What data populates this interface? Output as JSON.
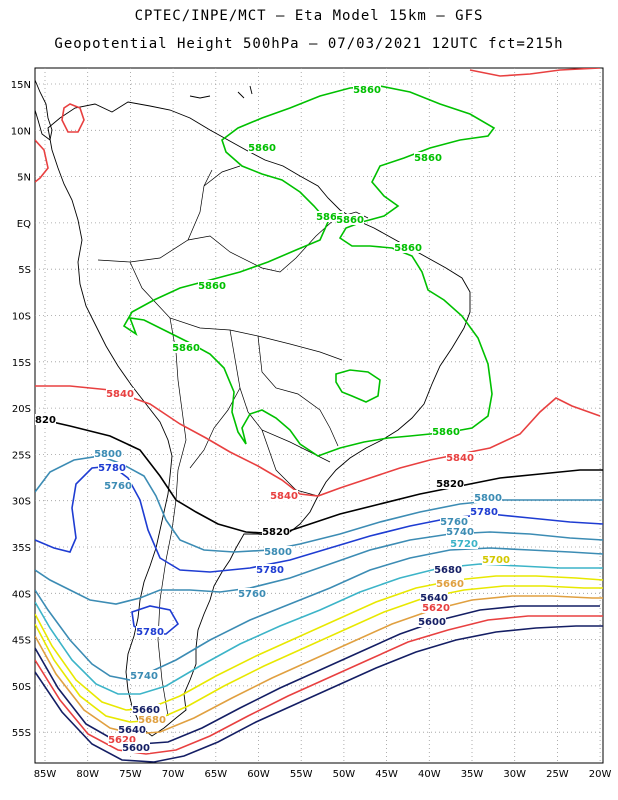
{
  "header": {
    "line1": "CPTEC/INPE/MCT –  Eta Model 15km – GFS",
    "line2": "Geopotential Height 500hPa – 07/03/2021 12UTC fct=215h"
  },
  "axes": {
    "lat_labels": [
      "15N",
      "10N",
      "5N",
      "EQ",
      "5S",
      "10S",
      "15S",
      "20S",
      "25S",
      "30S",
      "35S",
      "40S",
      "45S",
      "50S",
      "55S"
    ],
    "lon_labels": [
      "85W",
      "80W",
      "75W",
      "70W",
      "65W",
      "60W",
      "55W",
      "50W",
      "45W",
      "40W",
      "35W",
      "30W",
      "25W",
      "20W"
    ]
  },
  "contour_colors": {
    "5860": "#00c000",
    "5840": "#e84040",
    "5820": "#000000",
    "5800": "#3c8cb4",
    "5780": "#1e3cd2",
    "5760": "#3c8cb4",
    "5740": "#3c8cb4",
    "5720": "#3cb4c8",
    "5700": "#e8e800",
    "5680": "#e8e800",
    "5660": "#e0a040",
    "5640": "#141e64",
    "5620": "#e84040",
    "5600": "#141e64"
  },
  "contour_labels": [
    {
      "text": "5860",
      "color": "#00c000"
    },
    {
      "text": "5860",
      "color": "#00c000"
    },
    {
      "text": "5860",
      "color": "#00c000"
    },
    {
      "text": "5860",
      "color": "#00c000"
    },
    {
      "text": "5860",
      "color": "#00c000"
    },
    {
      "text": "5860",
      "color": "#00c000"
    },
    {
      "text": "5860",
      "color": "#00c000"
    },
    {
      "text": "5860",
      "color": "#00c000"
    },
    {
      "text": "5860",
      "color": "#00c000"
    },
    {
      "text": "5840",
      "color": "#e84040"
    },
    {
      "text": "5840",
      "color": "#e84040"
    },
    {
      "text": "5840",
      "color": "#e84040"
    },
    {
      "text": "5820",
      "color": "#000000"
    },
    {
      "text": "5820",
      "color": "#000000"
    },
    {
      "text": "5820",
      "color": "#000000"
    },
    {
      "text": "5800",
      "color": "#3c8cb4"
    },
    {
      "text": "5800",
      "color": "#3c8cb4"
    },
    {
      "text": "5800",
      "color": "#3c8cb4"
    },
    {
      "text": "5780",
      "color": "#1e3cd2"
    },
    {
      "text": "5780",
      "color": "#1e3cd2"
    },
    {
      "text": "5780",
      "color": "#1e3cd2"
    },
    {
      "text": "5780",
      "color": "#1e3cd2"
    },
    {
      "text": "5760",
      "color": "#3c8cb4"
    },
    {
      "text": "5760",
      "color": "#3c8cb4"
    },
    {
      "text": "5760",
      "color": "#3c8cb4"
    },
    {
      "text": "5740",
      "color": "#3c8cb4"
    },
    {
      "text": "5740",
      "color": "#3c8cb4"
    },
    {
      "text": "5720",
      "color": "#3cb4c8"
    },
    {
      "text": "5700",
      "color": "#d2c800"
    },
    {
      "text": "5680",
      "color": "#141e64"
    },
    {
      "text": "5660",
      "color": "#e0a040"
    },
    {
      "text": "5680",
      "color": "#e0a040"
    },
    {
      "text": "5640",
      "color": "#141e64"
    },
    {
      "text": "5620",
      "color": "#e84040"
    },
    {
      "text": "5600",
      "color": "#141e64"
    },
    {
      "text": "5660",
      "color": "#141e64"
    },
    {
      "text": "5640",
      "color": "#141e64"
    },
    {
      "text": "5620",
      "color": "#e84040"
    },
    {
      "text": "5600",
      "color": "#141e64"
    }
  ]
}
